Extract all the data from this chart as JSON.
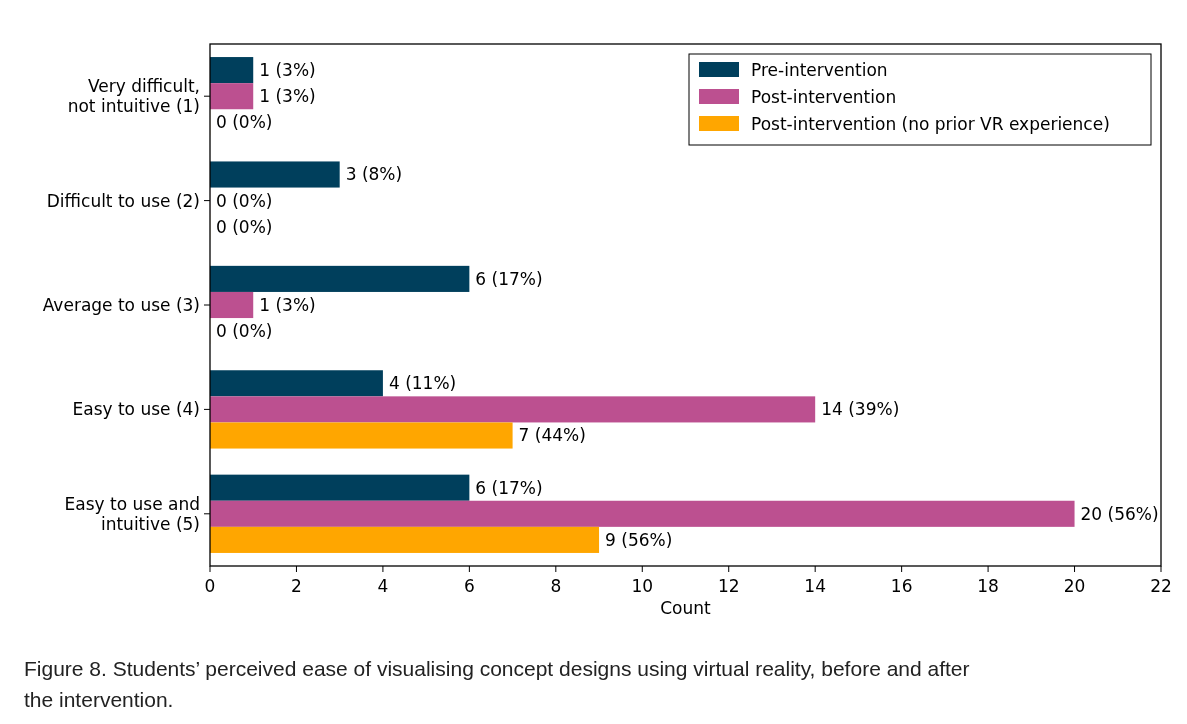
{
  "chart_data": {
    "type": "bar",
    "orientation": "horizontal",
    "xlabel": "Count",
    "categories": [
      "Very difficult,\nnot intuitive (1)",
      "Difficult to use (2)",
      "Average to use (3)",
      "Easy to use (4)",
      "Easy to use and\nintuitive (5)"
    ],
    "series": [
      {
        "name": "Pre-intervention",
        "color": "#003f5c",
        "values": [
          1,
          3,
          6,
          4,
          6
        ],
        "value_labels": [
          "1 (3%)",
          "3 (8%)",
          "6 (17%)",
          "4 (11%)",
          "6 (17%)"
        ]
      },
      {
        "name": "Post-intervention",
        "color": "#bc5090",
        "values": [
          1,
          0,
          1,
          14,
          20
        ],
        "value_labels": [
          "1 (3%)",
          "0 (0%)",
          "1 (3%)",
          "14 (39%)",
          "20 (56%)"
        ]
      },
      {
        "name": "Post-intervention (no prior VR experience)",
        "color": "#ffa600",
        "values": [
          0,
          0,
          0,
          7,
          9
        ],
        "value_labels": [
          "0 (0%)",
          "0 (0%)",
          "0 (0%)",
          "7 (44%)",
          "9 (56%)"
        ]
      }
    ],
    "xlim": [
      0,
      22
    ],
    "xticks": [
      0,
      2,
      4,
      6,
      8,
      10,
      12,
      14,
      16,
      18,
      20,
      22
    ],
    "legend": "top right",
    "grid": false,
    "annotations": [
      "Figure 8. Students’ perceived ease of visualising concept designs using virtual reality, before and after the intervention."
    ]
  }
}
